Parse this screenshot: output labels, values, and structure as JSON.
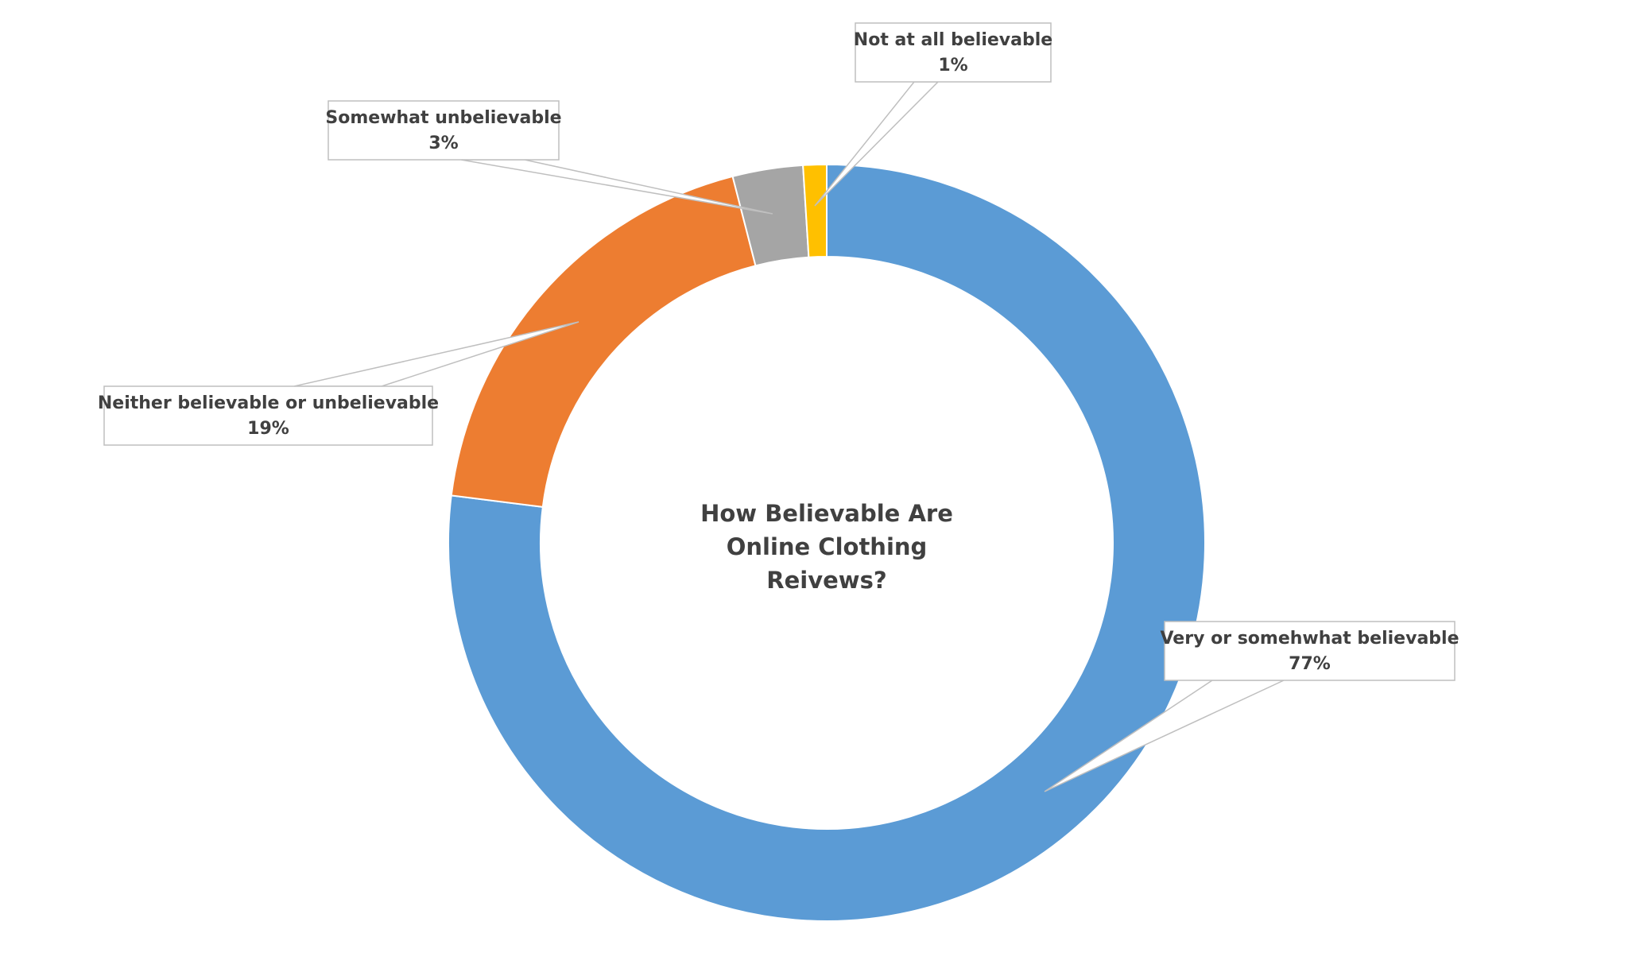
{
  "chart_data": {
    "type": "pie",
    "title": "How Believable Are Online Clothing Reivews?",
    "categories": [
      "Very or somehwhat believable",
      "Neither believable or unbelievable",
      "Somewhat unbelievable",
      "Not at all believable"
    ],
    "values": [
      77,
      19,
      3,
      1
    ],
    "value_labels": [
      "77%",
      "19%",
      "3%",
      "1%"
    ],
    "colors": [
      "#5b9bd5",
      "#ed7d31",
      "#a5a5a5",
      "#ffc000"
    ]
  }
}
